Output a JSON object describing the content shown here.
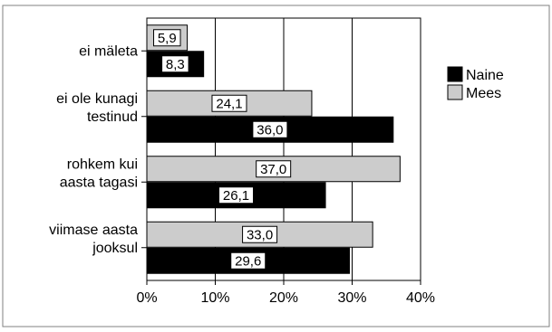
{
  "chart_data": {
    "type": "bar",
    "orientation": "horizontal",
    "categories": [
      [
        "ei mäleta"
      ],
      [
        "ei ole kunagi",
        "testinud"
      ],
      [
        "rohkem kui",
        "aasta tagasi"
      ],
      [
        "viimase aasta",
        "jooksul"
      ]
    ],
    "series": [
      {
        "name": "Mees",
        "values": [
          5.9,
          24.1,
          37.0,
          33.0
        ],
        "labels": [
          "5,9",
          "24,1",
          "37,0",
          "33,0"
        ],
        "color": "#cccccc"
      },
      {
        "name": "Naine",
        "values": [
          8.3,
          36.0,
          26.1,
          29.6
        ],
        "labels": [
          "8,3",
          "36,0",
          "26,1",
          "29,6"
        ],
        "color": "#000000"
      }
    ],
    "legend": [
      {
        "name": "Naine",
        "color": "#000000"
      },
      {
        "name": "Mees",
        "color": "#cccccc"
      }
    ],
    "legend_position": "right",
    "xlim": [
      0,
      40
    ],
    "xticks": [
      0,
      10,
      20,
      30,
      40
    ],
    "xtick_labels": [
      "0%",
      "10%",
      "20%",
      "30%",
      "40%"
    ],
    "grid": true,
    "title": "",
    "xlabel": "",
    "ylabel": ""
  }
}
